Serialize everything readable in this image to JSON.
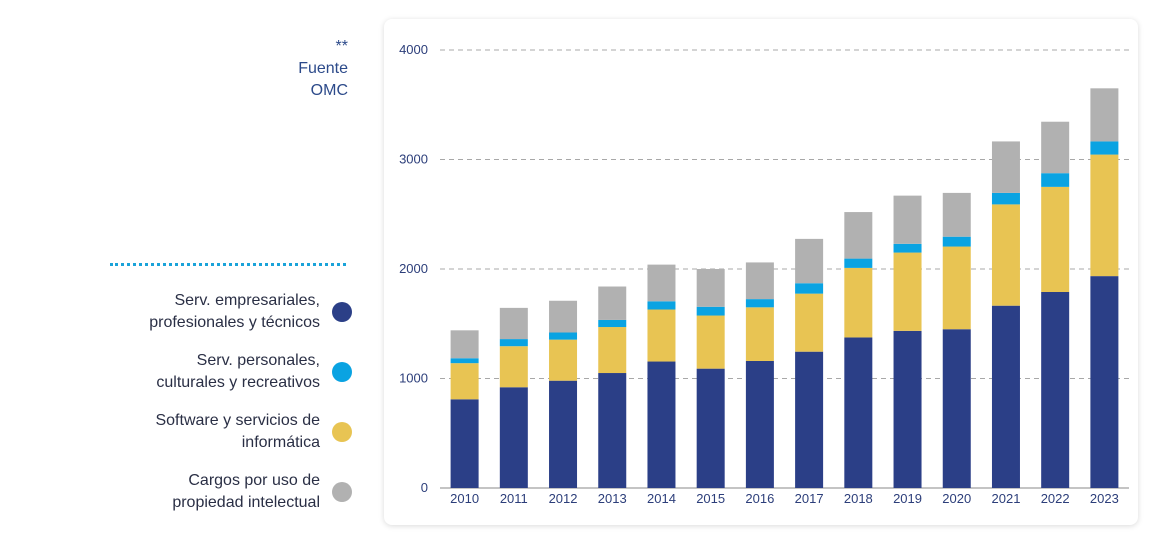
{
  "source": {
    "line1": "**",
    "line2": "Fuente",
    "line3": "OMC"
  },
  "legend": [
    {
      "line1": "Serv. empresariales,",
      "line2": "profesionales y técnicos",
      "color": "#2b3f87"
    },
    {
      "line1": "Serv. personales,",
      "line2": "culturales y recreativos",
      "color": "#0aa3e2"
    },
    {
      "line1": "Software y servicios de",
      "line2": "informática",
      "color": "#e8c453"
    },
    {
      "line1": "Cargos por uso de",
      "line2": "propiedad intelectual",
      "color": "#b1b1b1"
    }
  ],
  "chart_data": {
    "type": "bar",
    "stacked": true,
    "categories": [
      "2010",
      "2011",
      "2012",
      "2013",
      "2014",
      "2015",
      "2016",
      "2017",
      "2018",
      "2019",
      "2020",
      "2021",
      "2022",
      "2023"
    ],
    "series": [
      {
        "name": "Serv. empresariales, profesionales y técnicos",
        "color": "#2b3f87",
        "values": [
          810,
          920,
          980,
          1050,
          1155,
          1090,
          1160,
          1245,
          1375,
          1435,
          1450,
          1665,
          1790,
          1935
        ]
      },
      {
        "name": "Software y servicios de informática",
        "color": "#e8c453",
        "values": [
          330,
          375,
          375,
          420,
          475,
          485,
          490,
          530,
          635,
          715,
          755,
          925,
          960,
          1110
        ]
      },
      {
        "name": "Serv. personales, culturales y recreativos",
        "color": "#0aa3e2",
        "values": [
          45,
          65,
          65,
          65,
          75,
          80,
          75,
          95,
          85,
          80,
          90,
          105,
          125,
          120
        ]
      },
      {
        "name": "Cargos por uso de propiedad intelectual",
        "color": "#b1b1b1",
        "values": [
          255,
          285,
          290,
          305,
          335,
          345,
          335,
          405,
          425,
          440,
          400,
          470,
          470,
          485
        ]
      }
    ],
    "yticks": [
      "0",
      "1000",
      "2000",
      "3000",
      "4000"
    ],
    "ylim": [
      0,
      4000
    ],
    "grid": true
  }
}
